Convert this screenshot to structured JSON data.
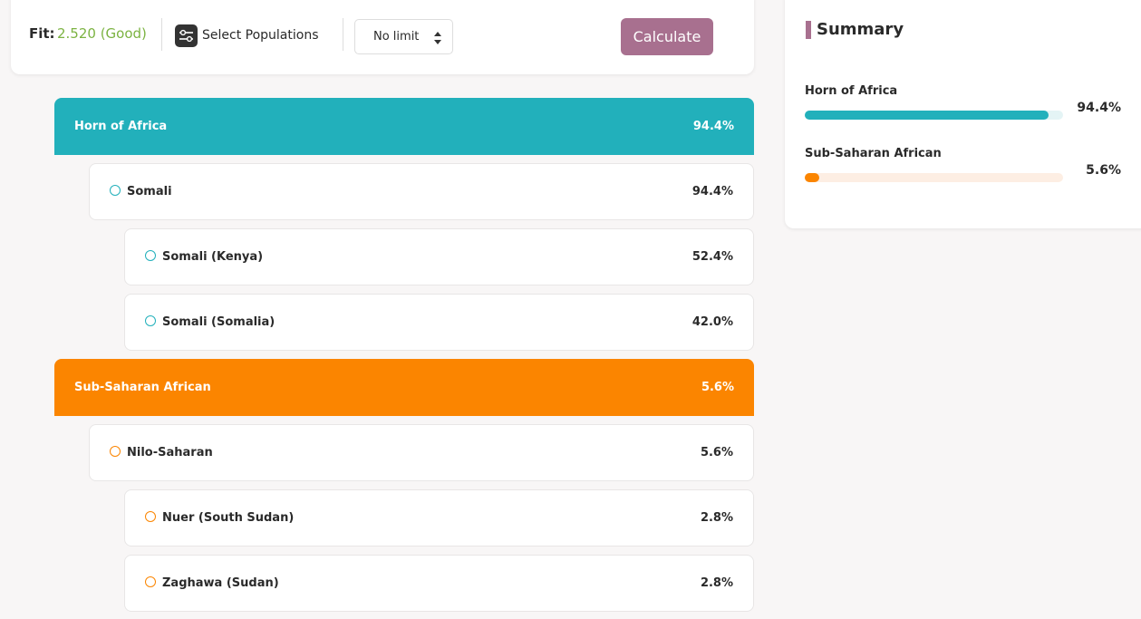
{
  "toolbar": {
    "fit_label": "Fit:",
    "fit_value": "2.520 (Good)",
    "select_button": "Select Populations",
    "limit_select": "No limit",
    "calculate_button": "Calculate"
  },
  "groups": [
    {
      "name": "Horn of Africa",
      "percent": "94.4%",
      "color": "#22b0bb",
      "children": [
        {
          "name": "Somali",
          "percent": "94.4%",
          "children": [
            {
              "name": "Somali (Kenya)",
              "percent": "52.4%"
            },
            {
              "name": "Somali (Somalia)",
              "percent": "42.0%"
            }
          ]
        }
      ]
    },
    {
      "name": "Sub-Saharan African",
      "percent": "5.6%",
      "color": "#fb8500",
      "children": [
        {
          "name": "Nilo-Saharan",
          "percent": "5.6%",
          "children": [
            {
              "name": "Nuer (South Sudan)",
              "percent": "2.8%"
            },
            {
              "name": "Zaghawa (Sudan)",
              "percent": "2.8%"
            }
          ]
        }
      ]
    }
  ],
  "summary": {
    "title": "Summary",
    "items": [
      {
        "name": "Horn of Africa",
        "percent": {
          "value": 94.4,
          "label": "94.4%"
        },
        "color": "#22b0bb",
        "track_color": "#e4f4f5"
      },
      {
        "name": "Sub-Saharan African",
        "percent": {
          "value": 5.6,
          "label": "5.6%"
        },
        "color": "#fb8500",
        "track_color": "#fdeee3"
      }
    ]
  }
}
